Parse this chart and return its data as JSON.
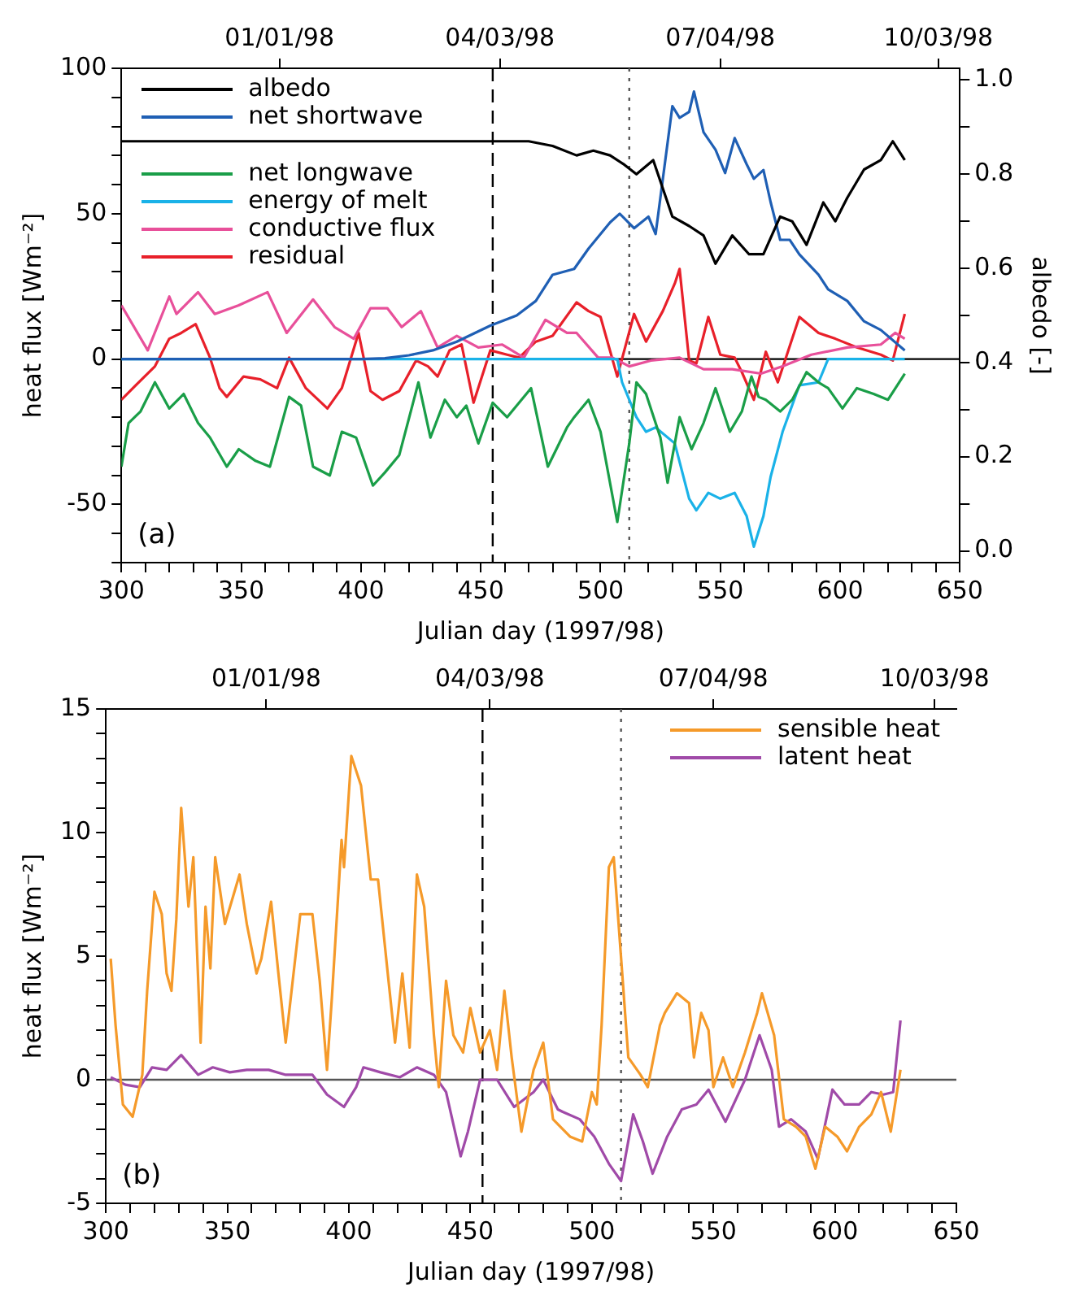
{
  "chart_data": [
    {
      "type": "line",
      "xlabel": "Julian day (1997/98)",
      "ylabel": "heat flux [Wm⁻²]",
      "y2label": "albedo [-]",
      "legend": "top left",
      "xlim": [
        300,
        650
      ],
      "xticks": [
        300,
        {
          "value": 310,
          "label": null
        },
        {
          "value": 320,
          "label": null
        },
        {
          "value": 330,
          "label": null
        },
        {
          "value": 340,
          "label": null
        },
        350,
        {
          "value": 360,
          "label": null
        },
        {
          "value": 370,
          "label": null
        },
        {
          "value": 380,
          "label": null
        },
        {
          "value": 390,
          "label": null
        },
        400,
        {
          "value": 410,
          "label": null
        },
        {
          "value": 420,
          "label": null
        },
        {
          "value": 430,
          "label": null
        },
        {
          "value": 440,
          "label": null
        },
        450,
        {
          "value": 460,
          "label": null
        },
        {
          "value": 470,
          "label": null
        },
        {
          "value": 480,
          "label": null
        },
        {
          "value": 490,
          "label": null
        },
        500,
        {
          "value": 510,
          "label": null
        },
        {
          "value": 520,
          "label": null
        },
        {
          "value": 530,
          "label": null
        },
        {
          "value": 540,
          "label": null
        },
        550,
        {
          "value": 560,
          "label": null
        },
        {
          "value": 570,
          "label": null
        },
        {
          "value": 580,
          "label": null
        },
        {
          "value": 590,
          "label": null
        },
        600,
        {
          "value": 610,
          "label": null
        },
        {
          "value": 620,
          "label": null
        },
        {
          "value": 630,
          "label": null
        },
        {
          "value": 640,
          "label": null
        },
        650
      ],
      "x2lim": [
        "1997-10-27",
        "1998-10-12"
      ],
      "x2ticks": [
        {
          "value": "1998-01-01",
          "label": "01/01/98"
        },
        {
          "value": "1998-04-03",
          "label": "04/03/98"
        },
        {
          "value": "1998-07-04",
          "label": "07/04/98"
        },
        {
          "value": "1998-10-03",
          "label": "10/03/98"
        }
      ],
      "ylim": [
        -70,
        100
      ],
      "yticks": [
        {
          "value": -70,
          "label": null
        },
        {
          "value": -60,
          "label": null
        },
        -50,
        {
          "value": -40,
          "label": null
        },
        {
          "value": -30,
          "label": null
        },
        {
          "value": -20,
          "label": null
        },
        {
          "value": -10,
          "label": null
        },
        0,
        {
          "value": 10,
          "label": null
        },
        {
          "value": 20,
          "label": null
        },
        {
          "value": 30,
          "label": null
        },
        {
          "value": 40,
          "label": null
        },
        50,
        {
          "value": 60,
          "label": null
        },
        {
          "value": 70,
          "label": null
        },
        {
          "value": 80,
          "label": null
        },
        {
          "value": 90,
          "label": null
        },
        100
      ],
      "y2lim": [
        -0.025,
        1.025
      ],
      "y2ticks": [
        {
          "value": 0,
          "label": "0.0"
        },
        {
          "value": 0.1,
          "label": null
        },
        {
          "value": 0.2,
          "label": "0.2"
        },
        {
          "value": 0.3,
          "label": null
        },
        {
          "value": 0.4,
          "label": "0.4"
        },
        {
          "value": 0.5,
          "label": null
        },
        {
          "value": 0.6,
          "label": "0.6"
        },
        {
          "value": 0.7,
          "label": null
        },
        {
          "value": 0.8,
          "label": "0.8"
        },
        {
          "value": 0.9,
          "label": null
        },
        {
          "value": 1,
          "label": "1.0"
        }
      ],
      "ref_lines": [
        {
          "axis": "x",
          "value": 455,
          "line_style": "dashed",
          "color": "#000000"
        },
        {
          "axis": "x",
          "value": 512,
          "line_style": "dotted",
          "color": "#555555"
        },
        {
          "axis": "y",
          "value": 0,
          "line_style": "solid",
          "color": "#000000"
        }
      ],
      "annotations": [
        "(a)"
      ],
      "series": [
        {
          "name": "albedo",
          "color": "#000000",
          "axis": "y2",
          "x": [
            300,
            470,
            480,
            490,
            497,
            504,
            510,
            515,
            522,
            530,
            537,
            543,
            548,
            555,
            562,
            568,
            575,
            580,
            586,
            593,
            598,
            603,
            610,
            617,
            622,
            627
          ],
          "values": [
            0.87,
            0.87,
            0.86,
            0.84,
            0.85,
            0.84,
            0.82,
            0.8,
            0.83,
            0.71,
            0.69,
            0.67,
            0.61,
            0.67,
            0.63,
            0.63,
            0.71,
            0.7,
            0.65,
            0.74,
            0.7,
            0.75,
            0.81,
            0.83,
            0.87,
            0.83
          ]
        },
        {
          "name": "net shortwave",
          "color": "#1f5fb4",
          "x": [
            300,
            400,
            410,
            420,
            430,
            440,
            454,
            465,
            473,
            480,
            489,
            495,
            504,
            508,
            514,
            520,
            523,
            530,
            533,
            537,
            539,
            543,
            548,
            552,
            556,
            561,
            564,
            568,
            571,
            575,
            579,
            583,
            591,
            595,
            603,
            610,
            617,
            627
          ],
          "values": [
            0,
            0,
            0.3,
            1.3,
            3,
            6,
            11.5,
            15,
            20,
            29,
            31,
            38,
            47,
            50,
            45,
            49,
            43,
            87,
            83,
            85,
            92,
            78,
            72,
            64,
            76,
            67,
            62,
            65,
            54,
            41,
            41,
            36,
            29,
            24,
            20,
            13,
            10,
            3
          ]
        },
        {
          "name": "net longwave",
          "color": "#1a9e48",
          "x": [
            300,
            303,
            308,
            314,
            320,
            326,
            332,
            337,
            344,
            349,
            356,
            362,
            370,
            375,
            380,
            387,
            392,
            398,
            405,
            410,
            416,
            424,
            429,
            435,
            440,
            444,
            449,
            455,
            461,
            471,
            478,
            486,
            489,
            495,
            500,
            507,
            512,
            515,
            519,
            525,
            528,
            533,
            538,
            543,
            548,
            554,
            559,
            563,
            566,
            569,
            575,
            580,
            586,
            591,
            595,
            601,
            607,
            614,
            620,
            627
          ],
          "values": [
            -37,
            -22,
            -18,
            -8,
            -17,
            -12,
            -22,
            -27,
            -37,
            -31,
            -35,
            -37,
            -13,
            -16,
            -37,
            -40,
            -25,
            -27,
            -43.5,
            -39,
            -33,
            -8,
            -27,
            -14,
            -20,
            -16,
            -29,
            -15,
            -20,
            -10,
            -37,
            -23.5,
            -20,
            -14,
            -25,
            -56,
            -29,
            -8,
            -12,
            -27,
            -42.5,
            -20,
            -31,
            -22,
            -10,
            -25,
            -18,
            -6,
            -13,
            -14,
            -18,
            -14,
            -4.5,
            -8,
            -10,
            -17,
            -10,
            -12,
            -14,
            -5
          ]
        },
        {
          "name": "energy of melt",
          "color": "#1ab2e8",
          "x": [
            300,
            507,
            509,
            515,
            519,
            523,
            531,
            537,
            540,
            545,
            550,
            556,
            561,
            564,
            568,
            571,
            576,
            583,
            591,
            595,
            627
          ],
          "values": [
            0,
            0,
            -8,
            -20,
            -25,
            -23.5,
            -29,
            -48,
            -52,
            -46,
            -48,
            -46,
            -54,
            -64.5,
            -54,
            -40.5,
            -25,
            -9,
            -8,
            0,
            0
          ]
        },
        {
          "name": "conductive flux",
          "color": "#e8509a",
          "x": [
            300,
            311,
            320,
            323,
            332,
            339,
            349,
            361,
            369,
            380,
            389,
            397,
            404,
            411,
            417,
            425,
            432,
            440,
            449,
            459,
            468,
            477,
            486,
            490,
            499,
            505,
            512,
            521,
            533,
            543,
            555,
            567,
            576,
            588,
            603,
            617,
            623,
            627
          ],
          "values": [
            18.5,
            3,
            21.5,
            15.5,
            23,
            15.5,
            18.5,
            23,
            9,
            20.5,
            11,
            7,
            17.5,
            17.5,
            11,
            16.5,
            4,
            8,
            4,
            5,
            0.5,
            13.5,
            9,
            9,
            0.5,
            0.5,
            -2.5,
            -0.5,
            0.5,
            -3.5,
            -3.5,
            -5,
            -2.5,
            1.5,
            4,
            5,
            9,
            7
          ]
        },
        {
          "name": "residual",
          "color": "#e8202a",
          "x": [
            300,
            306,
            314,
            320,
            325,
            331,
            337,
            341,
            344,
            351,
            358,
            365,
            370,
            377,
            386,
            392,
            399,
            404,
            409,
            416,
            423,
            428,
            432,
            437,
            442,
            447,
            454,
            461,
            466,
            473,
            480,
            490,
            495,
            500,
            507,
            514,
            519,
            526,
            531,
            533,
            537,
            540,
            545,
            550,
            556,
            559,
            564,
            569,
            574,
            583,
            591,
            598,
            607,
            617,
            622,
            627
          ],
          "values": [
            -14,
            -9,
            -2.5,
            7,
            9,
            12,
            0.5,
            -10,
            -13,
            -6,
            -7,
            -10,
            0.5,
            -10,
            -17,
            -10,
            9,
            -11,
            -14,
            -11,
            -0.5,
            -2.5,
            -6,
            3,
            5,
            -15,
            3,
            1.5,
            0.5,
            6,
            8,
            19.5,
            16.5,
            14.5,
            -6,
            15.5,
            6,
            16.5,
            26,
            31,
            -0.5,
            -1.5,
            14.5,
            1.5,
            0.5,
            -4.5,
            -14,
            2.5,
            -8,
            14.5,
            9,
            7,
            4,
            1.5,
            -0.5,
            15.5
          ]
        }
      ]
    },
    {
      "type": "line",
      "xlabel": "Julian day (1997/98)",
      "ylabel": "heat flux [Wm⁻²]",
      "legend": "top right",
      "xlim": [
        300,
        650
      ],
      "xticks": [
        300,
        {
          "value": 310,
          "label": null
        },
        {
          "value": 320,
          "label": null
        },
        {
          "value": 330,
          "label": null
        },
        {
          "value": 340,
          "label": null
        },
        350,
        {
          "value": 360,
          "label": null
        },
        {
          "value": 370,
          "label": null
        },
        {
          "value": 380,
          "label": null
        },
        {
          "value": 390,
          "label": null
        },
        400,
        {
          "value": 410,
          "label": null
        },
        {
          "value": 420,
          "label": null
        },
        {
          "value": 430,
          "label": null
        },
        {
          "value": 440,
          "label": null
        },
        450,
        {
          "value": 460,
          "label": null
        },
        {
          "value": 470,
          "label": null
        },
        {
          "value": 480,
          "label": null
        },
        {
          "value": 490,
          "label": null
        },
        500,
        {
          "value": 510,
          "label": null
        },
        {
          "value": 520,
          "label": null
        },
        {
          "value": 530,
          "label": null
        },
        {
          "value": 540,
          "label": null
        },
        550,
        {
          "value": 560,
          "label": null
        },
        {
          "value": 570,
          "label": null
        },
        {
          "value": 580,
          "label": null
        },
        {
          "value": 590,
          "label": null
        },
        600,
        {
          "value": 610,
          "label": null
        },
        {
          "value": 620,
          "label": null
        },
        {
          "value": 630,
          "label": null
        },
        {
          "value": 640,
          "label": null
        },
        650
      ],
      "x2lim": [
        "1997-10-27",
        "1998-10-12"
      ],
      "x2ticks": [
        {
          "value": "1998-01-01",
          "label": "01/01/98"
        },
        {
          "value": "1998-04-03",
          "label": "04/03/98"
        },
        {
          "value": "1998-07-04",
          "label": "07/04/98"
        },
        {
          "value": "1998-10-03",
          "label": "10/03/98"
        }
      ],
      "ylim": [
        -5,
        15
      ],
      "yticks": [
        -5,
        {
          "value": -4,
          "label": null
        },
        {
          "value": -3,
          "label": null
        },
        {
          "value": -2,
          "label": null
        },
        {
          "value": -1,
          "label": null
        },
        0,
        {
          "value": 1,
          "label": null
        },
        {
          "value": 2,
          "label": null
        },
        {
          "value": 3,
          "label": null
        },
        {
          "value": 4,
          "label": null
        },
        5,
        {
          "value": 6,
          "label": null
        },
        {
          "value": 7,
          "label": null
        },
        {
          "value": 8,
          "label": null
        },
        {
          "value": 9,
          "label": null
        },
        10,
        {
          "value": 11,
          "label": null
        },
        {
          "value": 12,
          "label": null
        },
        {
          "value": 13,
          "label": null
        },
        {
          "value": 14,
          "label": null
        },
        15
      ],
      "ref_lines": [
        {
          "axis": "x",
          "value": 455,
          "line_style": "dashed",
          "color": "#000000"
        },
        {
          "axis": "x",
          "value": 512,
          "line_style": "dotted",
          "color": "#555555"
        },
        {
          "axis": "y",
          "value": 0,
          "line_style": "solid",
          "color": "#555555"
        }
      ],
      "annotations": [
        "(b)"
      ],
      "series": [
        {
          "name": "sensible heat",
          "color": "#f59a2a",
          "x": [
            302,
            304,
            307,
            311,
            315,
            317,
            320,
            323,
            325,
            327,
            329,
            331,
            334,
            336,
            339,
            341,
            343,
            345,
            349,
            355,
            358,
            362,
            364,
            368,
            371,
            374,
            380,
            385,
            388,
            391,
            393,
            397,
            398,
            401,
            405,
            409,
            412,
            416,
            419,
            422,
            425,
            428,
            431,
            435,
            437,
            440,
            443,
            447,
            450,
            454,
            458,
            461,
            464,
            467,
            471,
            476,
            480,
            484,
            491,
            496,
            500,
            502,
            504,
            507,
            509,
            511,
            515,
            520,
            523,
            528,
            530,
            535,
            540,
            542,
            545,
            548,
            550,
            554,
            558,
            563,
            568,
            570,
            575,
            579,
            584,
            588,
            592,
            596,
            601,
            605,
            610,
            615,
            619,
            623,
            627
          ],
          "values": [
            4.9,
            2.2,
            -1,
            -1.5,
            0.2,
            3.6,
            7.6,
            6.7,
            4.3,
            3.6,
            6.5,
            11,
            7,
            9,
            1.5,
            7,
            4.5,
            9,
            6.3,
            8.3,
            6.3,
            4.3,
            4.9,
            7.2,
            4.3,
            1.5,
            6.7,
            6.7,
            4,
            0.4,
            3.3,
            9.7,
            8.6,
            13.1,
            11.9,
            8.1,
            8.1,
            4.3,
            1.5,
            4.3,
            1.3,
            8.3,
            7,
            1.8,
            -0.3,
            4,
            1.8,
            1.1,
            2.9,
            1.1,
            2,
            0.4,
            3.6,
            0.9,
            -2.1,
            0.4,
            1.5,
            -1.6,
            -2.3,
            -2.5,
            -0.5,
            -1,
            2.2,
            8.6,
            9,
            6.3,
            0.9,
            0.2,
            -0.3,
            2.2,
            2.7,
            3.5,
            3.1,
            0.9,
            2.7,
            2,
            -0.3,
            0.9,
            -0.3,
            1.1,
            2.7,
            3.5,
            1.8,
            -1.6,
            -1.9,
            -2.3,
            -3.6,
            -1.9,
            -2.3,
            -2.9,
            -1.9,
            -1.4,
            -0.5,
            -2.1,
            0.4
          ]
        },
        {
          "name": "latent heat",
          "color": "#a04aa8",
          "x": [
            302,
            308,
            314,
            319,
            325,
            331,
            338,
            344,
            351,
            358,
            367,
            374,
            385,
            391,
            398,
            403,
            406,
            413,
            421,
            428,
            435,
            440,
            446,
            449,
            454,
            461,
            468,
            476,
            480,
            486,
            488,
            495,
            501,
            507,
            512,
            517,
            521,
            525,
            531,
            537,
            543,
            548,
            555,
            563,
            569,
            574,
            577,
            582,
            588,
            593,
            599,
            604,
            610,
            615,
            620,
            624,
            627
          ],
          "values": [
            0.1,
            -0.2,
            -0.3,
            0.5,
            0.4,
            1,
            0.2,
            0.5,
            0.3,
            0.4,
            0.4,
            0.2,
            0.2,
            -0.6,
            -1.1,
            -0.3,
            0.5,
            0.3,
            0.1,
            0.5,
            0.2,
            -0.5,
            -3.1,
            -2.1,
            0,
            0,
            -1.1,
            -0.5,
            0,
            -1.2,
            -1.3,
            -1.6,
            -2.3,
            -3.4,
            -4.1,
            -1.4,
            -2.5,
            -3.8,
            -2.3,
            -1.2,
            -1,
            -0.4,
            -1.7,
            0,
            1.8,
            0.4,
            -1.9,
            -1.6,
            -2.1,
            -3.2,
            -0.4,
            -1,
            -1,
            -0.5,
            -0.6,
            -0.5,
            2.4
          ]
        }
      ]
    }
  ]
}
